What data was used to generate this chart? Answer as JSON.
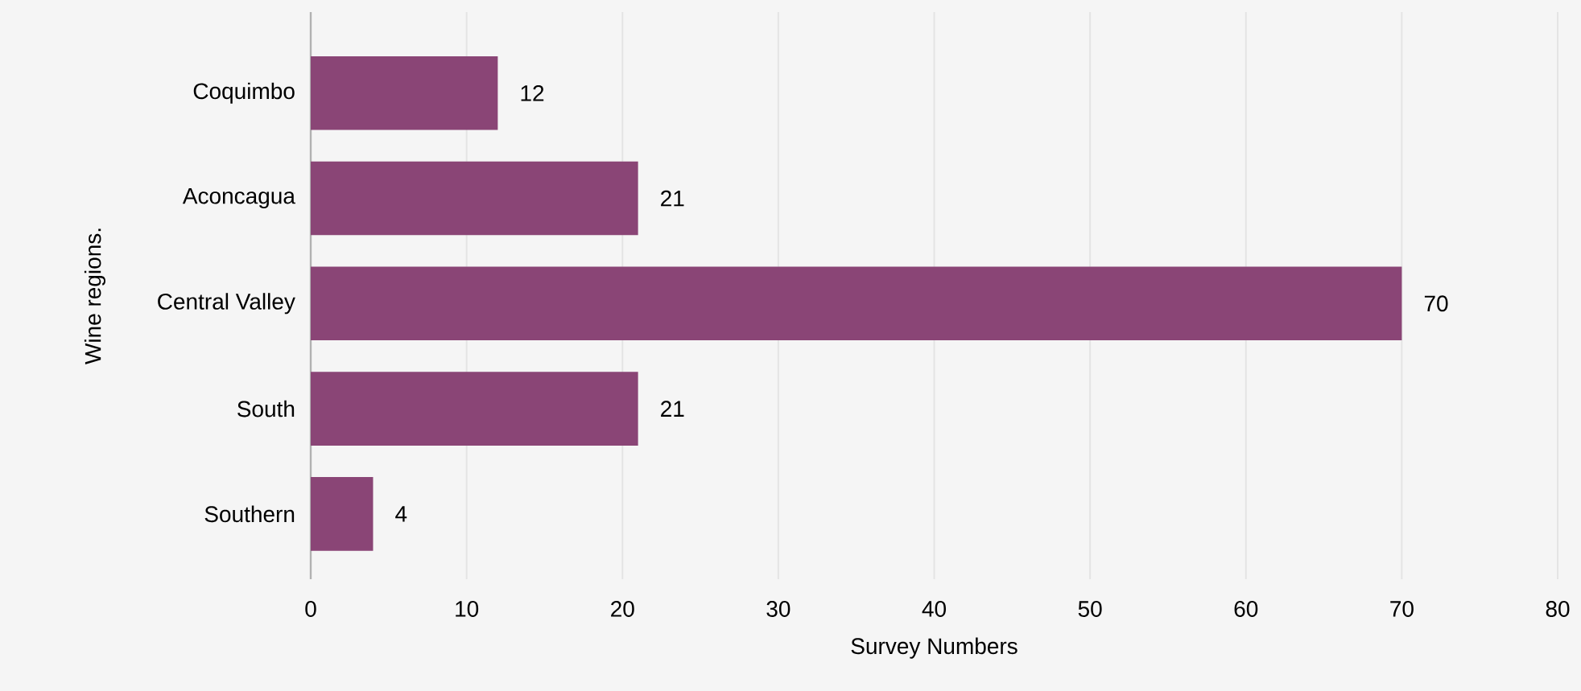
{
  "chart_data": {
    "type": "bar",
    "orientation": "horizontal",
    "xlabel": "Survey Numbers",
    "ylabel": "Wine regions.",
    "categories": [
      "Coquimbo",
      "Aconcagua",
      "Central Valley",
      "South",
      "Southern"
    ],
    "values": [
      12,
      21,
      70,
      21,
      4
    ],
    "color": "#8a4576",
    "data_labels": true,
    "xlim": [
      0,
      80
    ],
    "xticks": [
      0,
      10,
      20,
      30,
      40,
      50,
      60,
      70,
      80
    ],
    "grid": "x"
  }
}
